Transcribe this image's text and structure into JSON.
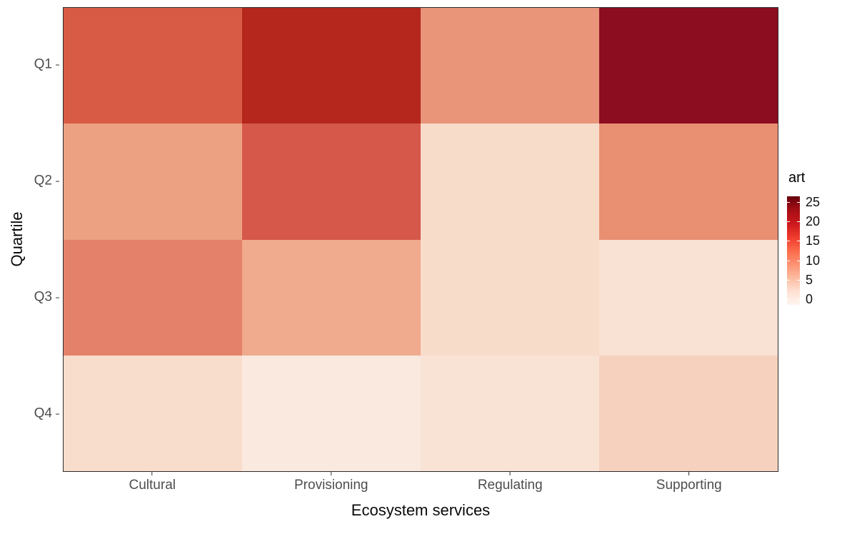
{
  "figure": {
    "background": "#ffffff",
    "panel_border_color": "#2b2b2b",
    "axis_text_color": "#4d4d4d",
    "axis_title_color": "#0a0a0a"
  },
  "chart_data": {
    "type": "heatmap",
    "title": "",
    "xlabel": "Ecosystem services",
    "ylabel": "Quartile",
    "x_categories": [
      "Cultural",
      "Provisioning",
      "Regulating",
      "Supporting"
    ],
    "y_categories": [
      "Q1",
      "Q2",
      "Q3",
      "Q4"
    ],
    "values": [
      [
        14,
        20,
        9,
        23
      ],
      [
        8,
        15,
        3,
        10
      ],
      [
        11,
        7,
        3,
        2
      ],
      [
        3,
        1,
        2,
        4
      ]
    ],
    "cell_colors": [
      [
        "#d85c45",
        "#b5271d",
        "#e8957a",
        "#8c0d20"
      ],
      [
        "#eca183",
        "#d5584b",
        "#f8dcca",
        "#e98f72"
      ],
      [
        "#e3816a",
        "#f0aa8d",
        "#f8dcca",
        "#f9e1d3"
      ],
      [
        "#f8ddcd",
        "#fae9de",
        "#f9e3d5",
        "#f6d2be"
      ]
    ],
    "grid": false,
    "legend": {
      "title": "art",
      "position": "right",
      "ticks": [
        25,
        20,
        15,
        10,
        5,
        0
      ],
      "range": [
        0,
        25
      ],
      "gradient_top_to_bottom": [
        "#67000d",
        "#a50f15",
        "#cb181d",
        "#ef3b2c",
        "#fb6a4a",
        "#fc9272",
        "#fcbba1",
        "#fee0d2",
        "#fff5f0"
      ]
    }
  }
}
